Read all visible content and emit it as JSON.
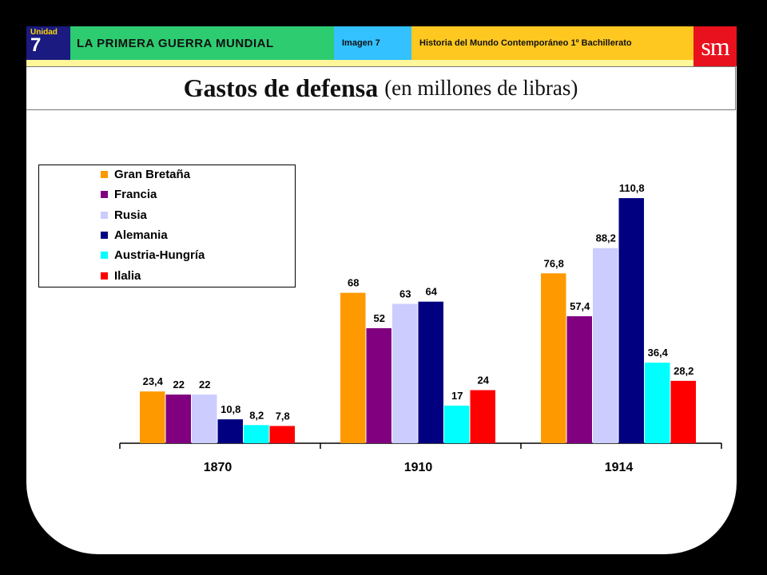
{
  "header": {
    "unit_label": "Unidad",
    "unit_number": "7",
    "section_title": "LA PRIMERA GUERRA MUNDIAL",
    "image_label": "Imagen 7",
    "course": "Historia del Mundo Contemporáneo 1º Bachillerato",
    "logo": "sm"
  },
  "chart_data": {
    "type": "bar",
    "title": "Gastos de defensa",
    "subtitle": "(en millones de libras)",
    "categories": [
      "1870",
      "1910",
      "1914"
    ],
    "series": [
      {
        "name": "Gran Bretaña",
        "color": "#ff9900",
        "values": [
          23.4,
          68,
          76.8
        ],
        "labels": [
          "23,4",
          "68",
          "76,8"
        ]
      },
      {
        "name": "Francia",
        "color": "#800080",
        "values": [
          22,
          52,
          57.4
        ],
        "labels": [
          "22",
          "52",
          "57,4"
        ]
      },
      {
        "name": "Rusia",
        "color": "#ccccff",
        "values": [
          22,
          63,
          88.2
        ],
        "labels": [
          "22",
          "63",
          "88,2"
        ]
      },
      {
        "name": "Alemania",
        "color": "#000080",
        "values": [
          10.8,
          64,
          110.8
        ],
        "labels": [
          "10,8",
          "64",
          "110,8"
        ]
      },
      {
        "name": "Austria-Hungría",
        "color": "#00ffff",
        "values": [
          8.2,
          17,
          36.4
        ],
        "labels": [
          "8,2",
          "17",
          "36,4"
        ]
      },
      {
        "name": "Ilalia",
        "color": "#ff0000",
        "values": [
          7.8,
          24,
          28.2
        ],
        "labels": [
          "7,8",
          "24",
          "28,2"
        ]
      }
    ],
    "legend_position": "top-left",
    "grid": false
  }
}
